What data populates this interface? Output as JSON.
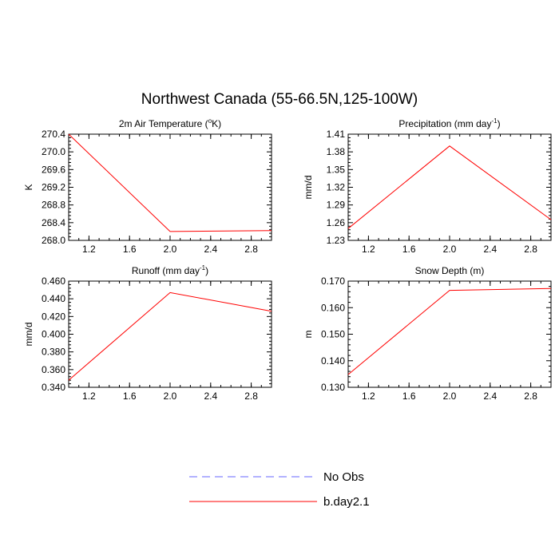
{
  "title": "Northwest Canada (55-66.5N,125-100W)",
  "legend": {
    "placement": "bottom-center",
    "entries": [
      {
        "label": "No Obs",
        "color": "#6666ff",
        "style": "dashed"
      },
      {
        "label": "b.day2.1",
        "color": "#ff0000",
        "style": "solid"
      }
    ]
  },
  "chart_data": [
    {
      "type": "line",
      "title": "2m Air Temperature (°K)",
      "title_parts": [
        "2m Air Temperature (",
        "o",
        "K)"
      ],
      "ylabel": "K",
      "xlim": [
        1,
        3
      ],
      "ylim": [
        268.0,
        270.4
      ],
      "xticks": [
        1.2,
        1.6,
        2.0,
        2.4,
        2.8
      ],
      "xtick_labels": [
        "1.2",
        "1.6",
        "2.0",
        "2.4",
        "2.8"
      ],
      "yticks": [
        268.0,
        268.4,
        268.8,
        269.2,
        269.6,
        270.0,
        270.4
      ],
      "ytick_labels": [
        "268.0",
        "268.4",
        "268.8",
        "269.2",
        "269.6",
        "270.0",
        "270.4"
      ],
      "grid": false,
      "series": [
        {
          "name": "b.day2.1",
          "color": "#ff0000",
          "x": [
            1,
            2,
            3
          ],
          "y": [
            270.4,
            268.2,
            268.22
          ]
        }
      ]
    },
    {
      "type": "line",
      "title": "Precipitation (mm day-1)",
      "title_parts": [
        "Precipitation (mm day",
        "-1",
        ")"
      ],
      "ylabel": "mm/d",
      "xlim": [
        1,
        3
      ],
      "ylim": [
        1.23,
        1.41
      ],
      "xticks": [
        1.2,
        1.6,
        2.0,
        2.4,
        2.8
      ],
      "xtick_labels": [
        "1.2",
        "1.6",
        "2.0",
        "2.4",
        "2.8"
      ],
      "yticks": [
        1.23,
        1.26,
        1.29,
        1.32,
        1.35,
        1.38,
        1.41
      ],
      "ytick_labels": [
        "1.23",
        "1.26",
        "1.29",
        "1.32",
        "1.35",
        "1.38",
        "1.41"
      ],
      "grid": false,
      "series": [
        {
          "name": "b.day2.1",
          "color": "#ff0000",
          "x": [
            1,
            2,
            3
          ],
          "y": [
            1.25,
            1.39,
            1.265
          ]
        }
      ]
    },
    {
      "type": "line",
      "title": "Runoff (mm day-1)",
      "title_parts": [
        "Runoff (mm day",
        "-1",
        ")"
      ],
      "ylabel": "mm/d",
      "xlim": [
        1,
        3
      ],
      "ylim": [
        0.34,
        0.46
      ],
      "xticks": [
        1.2,
        1.6,
        2.0,
        2.4,
        2.8
      ],
      "xtick_labels": [
        "1.2",
        "1.6",
        "2.0",
        "2.4",
        "2.8"
      ],
      "yticks": [
        0.34,
        0.36,
        0.38,
        0.4,
        0.42,
        0.44,
        0.46
      ],
      "ytick_labels": [
        "0.340",
        "0.360",
        "0.380",
        "0.400",
        "0.420",
        "0.440",
        "0.460"
      ],
      "grid": false,
      "series": [
        {
          "name": "b.day2.1",
          "color": "#ff0000",
          "x": [
            1,
            2,
            3
          ],
          "y": [
            0.348,
            0.447,
            0.426
          ]
        }
      ]
    },
    {
      "type": "line",
      "title": "Snow Depth (m)",
      "title_parts": [
        "Snow Depth (m)",
        "",
        ""
      ],
      "ylabel": "m",
      "xlim": [
        1,
        3
      ],
      "ylim": [
        0.13,
        0.17
      ],
      "xticks": [
        1.2,
        1.6,
        2.0,
        2.4,
        2.8
      ],
      "xtick_labels": [
        "1.2",
        "1.6",
        "2.0",
        "2.4",
        "2.8"
      ],
      "yticks": [
        0.13,
        0.14,
        0.15,
        0.16,
        0.17
      ],
      "ytick_labels": [
        "0.130",
        "0.140",
        "0.150",
        "0.160",
        "0.170"
      ],
      "grid": false,
      "series": [
        {
          "name": "b.day2.1",
          "color": "#ff0000",
          "x": [
            1,
            2,
            3
          ],
          "y": [
            0.1348,
            0.1665,
            0.1672
          ]
        }
      ]
    }
  ]
}
